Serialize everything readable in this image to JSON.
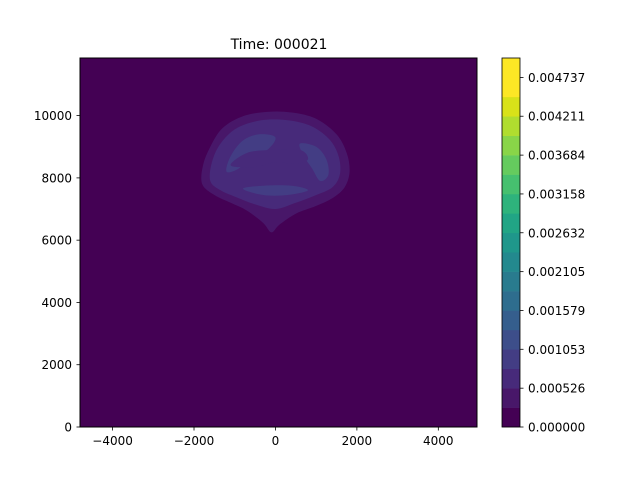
{
  "chart_data": {
    "type": "heatmap",
    "subtype": "filled-contour",
    "title": "Time: 000021",
    "xlabel": "",
    "ylabel": "",
    "xlim": [
      -4800,
      4950
    ],
    "ylim": [
      0,
      11850
    ],
    "x_ticks": [
      -4000,
      -2000,
      0,
      2000,
      4000
    ],
    "x_tick_labels": [
      "−4000",
      "−2000",
      "0",
      "2000",
      "4000"
    ],
    "y_ticks": [
      0,
      2000,
      4000,
      6000,
      8000,
      10000
    ],
    "y_tick_labels": [
      "0",
      "2000",
      "4000",
      "6000",
      "8000",
      "10000"
    ],
    "grid": false,
    "colormap": "viridis",
    "colorbar": {
      "min": 0.0,
      "max": 0.005,
      "levels": 19,
      "ticks": [
        0.0,
        0.000526,
        0.001053,
        0.001579,
        0.002105,
        0.002632,
        0.003158,
        0.003684,
        0.004211,
        0.004737
      ],
      "tick_labels": [
        "0.000000",
        "0.000526",
        "0.001053",
        "0.001579",
        "0.002105",
        "0.002632",
        "0.003158",
        "0.003684",
        "0.004211",
        "0.004737"
      ],
      "colors": [
        "#440154",
        "#481769",
        "#472a7a",
        "#433d84",
        "#3d4e8a",
        "#355e8d",
        "#2e6d8e",
        "#297b8e",
        "#23898e",
        "#1f978b",
        "#21a585",
        "#2eb37c",
        "#46c06f",
        "#65cb5e",
        "#89d548",
        "#b0dd2f",
        "#d8e219",
        "#fde725",
        "#fde725"
      ]
    },
    "background_level_color": "#440154",
    "plume": {
      "description_levels": [
        1,
        2,
        3
      ],
      "outer_boundary": [
        [
          -1800,
          7800
        ],
        [
          -1780,
          8400
        ],
        [
          -1600,
          9000
        ],
        [
          -1300,
          9600
        ],
        [
          -800,
          9980
        ],
        [
          -200,
          10120
        ],
        [
          400,
          10100
        ],
        [
          1000,
          9900
        ],
        [
          1500,
          9400
        ],
        [
          1750,
          8800
        ],
        [
          1820,
          8200
        ],
        [
          1700,
          7700
        ],
        [
          1400,
          7350
        ],
        [
          1000,
          7100
        ],
        [
          500,
          6850
        ],
        [
          100,
          6500
        ],
        [
          -100,
          6250
        ],
        [
          -300,
          6550
        ],
        [
          -700,
          6950
        ],
        [
          -1100,
          7200
        ],
        [
          -1500,
          7450
        ]
      ],
      "middle_boundary": [
        [
          -1600,
          7900
        ],
        [
          -1560,
          8500
        ],
        [
          -1350,
          9100
        ],
        [
          -950,
          9600
        ],
        [
          -350,
          9850
        ],
        [
          300,
          9850
        ],
        [
          900,
          9650
        ],
        [
          1350,
          9200
        ],
        [
          1560,
          8650
        ],
        [
          1580,
          8100
        ],
        [
          1400,
          7700
        ],
        [
          1000,
          7450
        ],
        [
          500,
          7200
        ],
        [
          0,
          7000
        ],
        [
          -500,
          7150
        ],
        [
          -1000,
          7400
        ],
        [
          -1350,
          7600
        ]
      ],
      "inner_lobes": [
        [
          [
            -1200,
            8200
          ],
          [
            -1100,
            8700
          ],
          [
            -800,
            9200
          ],
          [
            -400,
            9400
          ],
          [
            0,
            9300
          ],
          [
            -200,
            8900
          ],
          [
            -600,
            8700
          ],
          [
            -900,
            8300
          ]
        ],
        [
          [
            600,
            9100
          ],
          [
            1000,
            9000
          ],
          [
            1250,
            8600
          ],
          [
            1300,
            8100
          ],
          [
            1100,
            7900
          ],
          [
            900,
            8300
          ],
          [
            700,
            8700
          ]
        ],
        [
          [
            -800,
            7650
          ],
          [
            -300,
            7450
          ],
          [
            300,
            7450
          ],
          [
            800,
            7600
          ],
          [
            400,
            7750
          ],
          [
            -300,
            7750
          ]
        ]
      ],
      "inner_hole": [
        [
          -1100,
          8400
        ],
        [
          -700,
          8800
        ],
        [
          -100,
          8900
        ],
        [
          600,
          8900
        ],
        [
          800,
          8600
        ],
        [
          500,
          8450
        ],
        [
          0,
          8500
        ],
        [
          -500,
          8350
        ]
      ]
    }
  }
}
